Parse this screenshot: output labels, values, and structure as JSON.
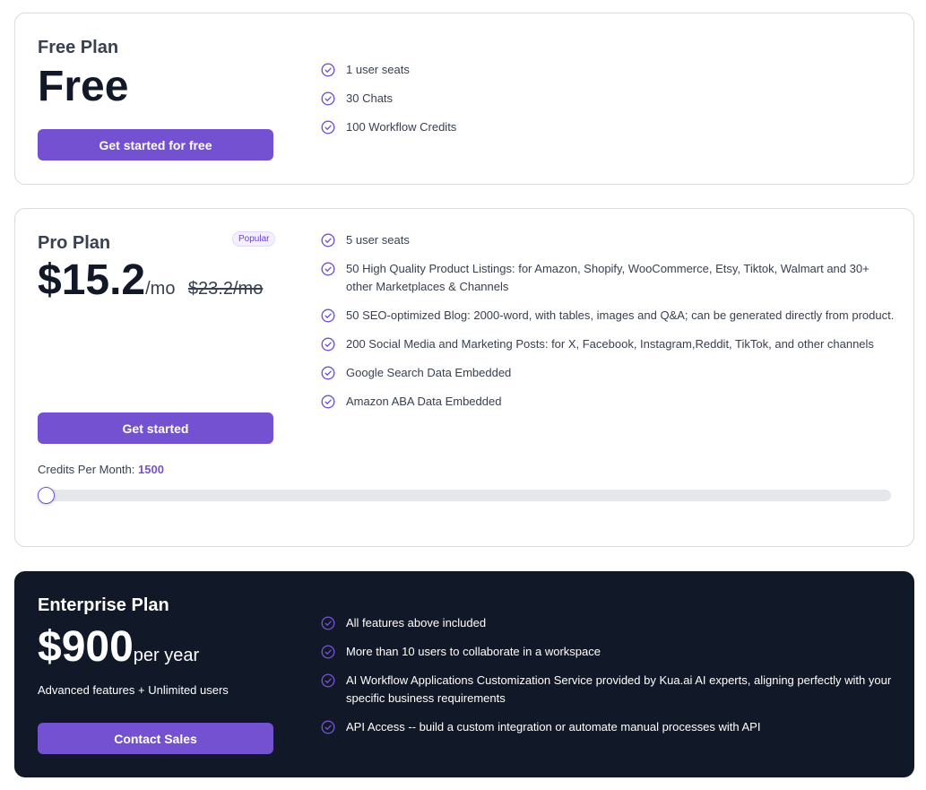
{
  "colors": {
    "accent": "#7451d1",
    "dark_bg": "#111827"
  },
  "free": {
    "name": "Free Plan",
    "price": "Free",
    "button": "Get started for free",
    "features": [
      "1 user seats",
      "30 Chats",
      "100 Workflow Credits"
    ]
  },
  "pro": {
    "name": "Pro Plan",
    "badge": "Popular",
    "price": "$15.2",
    "unit": "/mo",
    "old_price": "$23.2/mo",
    "button": "Get started",
    "credits_label": "Credits Per Month:",
    "credits_value": "1500",
    "slider_fraction": 0,
    "features": [
      "5 user seats",
      "50 High Quality Product Listings: for Amazon, Shopify, WooCommerce, Etsy, Tiktok, Walmart and 30+ other Marketplaces & Channels",
      "50 SEO-optimized Blog: 2000-word, with tables, images and Q&A; can be generated directly from product.",
      "200 Social Media and Marketing Posts: for X, Facebook, Instagram,Reddit, TikTok, and other channels",
      "Google Search Data Embedded",
      "Amazon ABA Data Embedded"
    ]
  },
  "enterprise": {
    "name": "Enterprise Plan",
    "price": "$900",
    "unit": "per year",
    "subtitle": "Advanced features + Unlimited users",
    "button": "Contact Sales",
    "features": [
      "All features above included",
      "More than 10 users to collaborate in a workspace",
      "AI Workflow Applications Customization Service provided by Kua.ai AI experts, aligning perfectly with your specific business requirements",
      "API Access -- build a custom integration or automate manual processes with API"
    ]
  }
}
